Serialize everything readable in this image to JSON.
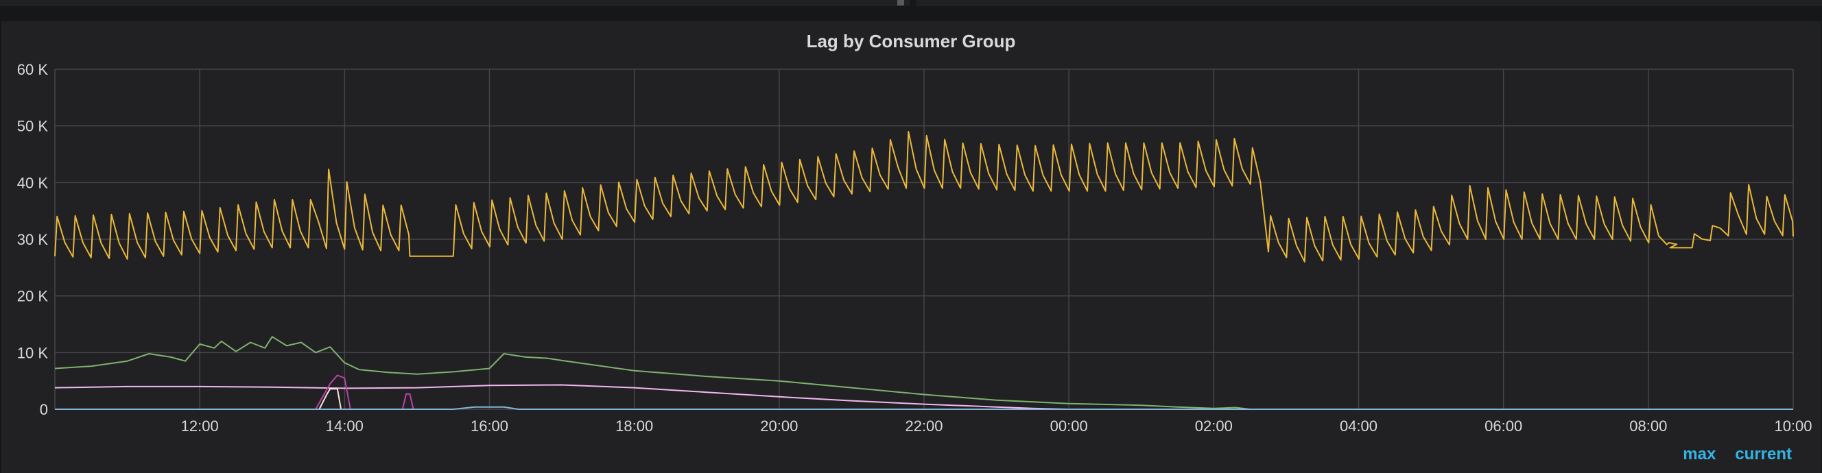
{
  "panel": {
    "title": "Lag by Consumer Group"
  },
  "legend": {
    "columns": [
      "max",
      "current"
    ]
  },
  "colors": {
    "background": "#212124",
    "grid": "#464649",
    "series_yellow": "#eab839",
    "series_green": "#7eb26d",
    "series_pink": "#f4b7f0",
    "series_purple": "#ba43a9",
    "series_cream": "#fce2de",
    "series_blue": "#82b5d8",
    "legend_text": "#33b5e5"
  },
  "chart_data": {
    "type": "line",
    "title": "Lag by Consumer Group",
    "xlabel": "",
    "ylabel": "",
    "x_range_hours": [
      10.0,
      34.0
    ],
    "ylim": [
      0,
      60000
    ],
    "y_ticks": [
      0,
      10000,
      20000,
      30000,
      40000,
      50000,
      60000
    ],
    "y_tick_labels": [
      "0",
      "10 K",
      "20 K",
      "30 K",
      "40 K",
      "50 K",
      "60 K"
    ],
    "x_ticks": [
      12,
      14,
      16,
      18,
      20,
      22,
      24,
      26,
      28,
      30,
      32,
      34
    ],
    "x_tick_labels": [
      "12:00",
      "14:00",
      "16:00",
      "18:00",
      "20:00",
      "22:00",
      "00:00",
      "02:00",
      "04:00",
      "06:00",
      "08:00",
      "10:00"
    ],
    "grid": true,
    "legend_placement": "bottom-right",
    "series": [
      {
        "color": "#eab839",
        "sawtooth": true,
        "period_hours": 0.25,
        "baseline": [
          [
            10.0,
            27000
          ],
          [
            11.0,
            26500
          ],
          [
            12.0,
            27500
          ],
          [
            13.0,
            28500
          ],
          [
            13.5,
            28500
          ],
          [
            14.5,
            28000
          ],
          [
            15.5,
            28000
          ],
          [
            17.0,
            30000
          ],
          [
            18.0,
            33000
          ],
          [
            19.0,
            35000
          ],
          [
            20.0,
            36000
          ],
          [
            21.0,
            38000
          ],
          [
            21.6,
            39000
          ],
          [
            22.5,
            39000
          ],
          [
            23.5,
            38500
          ],
          [
            24.5,
            38500
          ],
          [
            25.5,
            39000
          ],
          [
            26.4,
            39500
          ],
          [
            26.65,
            40000
          ],
          [
            26.7,
            28000
          ],
          [
            27.2,
            26000
          ],
          [
            28.0,
            26500
          ],
          [
            29.0,
            28000
          ],
          [
            29.5,
            30000
          ],
          [
            30.5,
            30000
          ],
          [
            31.5,
            30000
          ],
          [
            32.3,
            29000
          ],
          [
            32.6,
            28500
          ],
          [
            33.0,
            30500
          ],
          [
            33.5,
            31000
          ],
          [
            34.0,
            30500
          ]
        ],
        "peak": [
          [
            10.0,
            34000
          ],
          [
            11.0,
            34500
          ],
          [
            12.0,
            35000
          ],
          [
            13.0,
            37000
          ],
          [
            13.6,
            37000
          ],
          [
            13.65,
            43500
          ],
          [
            14.5,
            36000
          ],
          [
            15.5,
            36000
          ],
          [
            17.0,
            38500
          ],
          [
            18.0,
            40500
          ],
          [
            19.0,
            42000
          ],
          [
            20.0,
            43500
          ],
          [
            21.0,
            45500
          ],
          [
            21.5,
            46500
          ],
          [
            21.6,
            49500
          ],
          [
            22.5,
            47000
          ],
          [
            23.5,
            46500
          ],
          [
            24.5,
            47000
          ],
          [
            25.5,
            47000
          ],
          [
            26.5,
            48000
          ],
          [
            26.65,
            40000
          ],
          [
            26.8,
            33500
          ],
          [
            27.5,
            34000
          ],
          [
            28.0,
            34000
          ],
          [
            29.0,
            35500
          ],
          [
            29.5,
            39500
          ],
          [
            30.5,
            38000
          ],
          [
            31.5,
            37500
          ],
          [
            32.0,
            37000
          ],
          [
            32.3,
            29000
          ],
          [
            32.9,
            32500
          ],
          [
            33.25,
            41000
          ],
          [
            33.6,
            37500
          ],
          [
            34.0,
            38000
          ]
        ],
        "flat_segments": [
          [
            14.9,
            15.5,
            27000
          ],
          [
            32.3,
            32.6,
            28500
          ]
        ]
      },
      {
        "color": "#7eb26d",
        "points": [
          [
            10.0,
            7200
          ],
          [
            10.5,
            7600
          ],
          [
            11.0,
            8500
          ],
          [
            11.3,
            9800
          ],
          [
            11.6,
            9200
          ],
          [
            11.8,
            8500
          ],
          [
            12.0,
            11500
          ],
          [
            12.2,
            10800
          ],
          [
            12.3,
            12000
          ],
          [
            12.5,
            10200
          ],
          [
            12.7,
            11800
          ],
          [
            12.9,
            10800
          ],
          [
            13.0,
            12800
          ],
          [
            13.2,
            11200
          ],
          [
            13.4,
            11800
          ],
          [
            13.6,
            10000
          ],
          [
            13.8,
            11000
          ],
          [
            14.0,
            8200
          ],
          [
            14.2,
            7000
          ],
          [
            14.6,
            6500
          ],
          [
            15.0,
            6200
          ],
          [
            15.5,
            6600
          ],
          [
            16.0,
            7200
          ],
          [
            16.2,
            9800
          ],
          [
            16.5,
            9200
          ],
          [
            16.8,
            9000
          ],
          [
            17.0,
            8600
          ],
          [
            18.0,
            6800
          ],
          [
            19.0,
            5800
          ],
          [
            20.0,
            5000
          ],
          [
            21.0,
            3800
          ],
          [
            22.0,
            2600
          ],
          [
            23.0,
            1600
          ],
          [
            24.0,
            1000
          ],
          [
            25.0,
            700
          ],
          [
            25.5,
            400
          ],
          [
            26.0,
            150
          ],
          [
            26.3,
            300
          ],
          [
            26.5,
            0
          ],
          [
            34.0,
            0
          ]
        ]
      },
      {
        "color": "#f4b7f0",
        "points": [
          [
            10.0,
            3800
          ],
          [
            11.0,
            4000
          ],
          [
            12.0,
            4000
          ],
          [
            13.0,
            3900
          ],
          [
            14.0,
            3700
          ],
          [
            15.0,
            3800
          ],
          [
            16.0,
            4200
          ],
          [
            17.0,
            4300
          ],
          [
            18.0,
            3800
          ],
          [
            19.0,
            3000
          ],
          [
            20.0,
            2200
          ],
          [
            21.0,
            1500
          ],
          [
            22.0,
            900
          ],
          [
            23.0,
            400
          ],
          [
            23.5,
            150
          ],
          [
            24.0,
            0
          ],
          [
            34.0,
            0
          ]
        ]
      },
      {
        "color": "#ba43a9",
        "points": [
          [
            13.6,
            0
          ],
          [
            13.8,
            4500
          ],
          [
            13.9,
            6000
          ],
          [
            14.0,
            5500
          ],
          [
            14.08,
            0
          ],
          [
            14.8,
            0
          ],
          [
            14.85,
            2700
          ],
          [
            14.9,
            2700
          ],
          [
            14.95,
            0
          ]
        ]
      },
      {
        "color": "#fce2de",
        "points": [
          [
            13.65,
            0
          ],
          [
            13.75,
            2500
          ],
          [
            13.8,
            3600
          ],
          [
            13.9,
            3600
          ],
          [
            13.95,
            0
          ]
        ]
      },
      {
        "color": "#82b5d8",
        "points": [
          [
            10.0,
            0
          ],
          [
            15.5,
            0
          ],
          [
            15.8,
            400
          ],
          [
            16.2,
            400
          ],
          [
            16.4,
            0
          ],
          [
            34.0,
            0
          ]
        ]
      }
    ]
  }
}
